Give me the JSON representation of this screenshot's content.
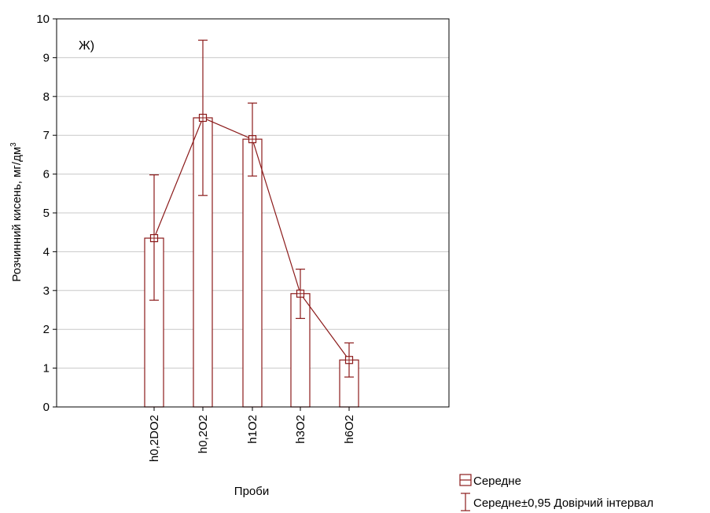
{
  "chart_data": {
    "type": "bar",
    "panel_label": "Ж)",
    "categories": [
      "h0,2DO2",
      "h0,2O2",
      "h1O2",
      "h3O2",
      "h6O2"
    ],
    "values": [
      4.35,
      7.45,
      6.9,
      2.92,
      1.21
    ],
    "ci_low": [
      2.75,
      5.45,
      5.95,
      2.28,
      0.77
    ],
    "ci_high": [
      5.98,
      9.45,
      7.83,
      3.55,
      1.65
    ],
    "xlabel": "Проби",
    "ylabel_main": "Розчинний кисень, мг/дм",
    "ylabel_sup": "3",
    "ylim": [
      0,
      10
    ],
    "yticks": [
      "0",
      "1",
      "2",
      "3",
      "4",
      "5",
      "6",
      "7",
      "8",
      "9",
      "10"
    ],
    "grid": true,
    "legend": {
      "position": "bottom-right",
      "mean_label": "Середне",
      "ci_label": "Середне±0,95 Довірчий інтервал"
    },
    "colors": {
      "series": "#8b1a1a",
      "grid": "#c8c8c8",
      "axis": "#000000"
    }
  }
}
